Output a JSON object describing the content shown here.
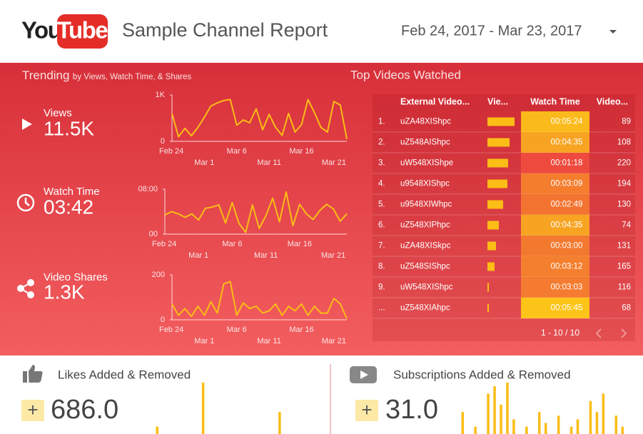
{
  "header": {
    "logo_you": "You",
    "logo_tube": "Tube",
    "title": "Sample Channel Report",
    "date_range": "Feb 24, 2017 - Mar 23, 2017"
  },
  "trending": {
    "title": "Trending",
    "subtitle": "by Views, Watch Time, & Shares",
    "metrics": [
      {
        "label": "Views",
        "value": "11.5K",
        "chart": {
          "type": "line",
          "color": "#fbbd16",
          "categories": [
            "Feb 24",
            null,
            null,
            null,
            null,
            "Mar 1",
            null,
            null,
            null,
            null,
            "Mar 6",
            null,
            null,
            null,
            null,
            "Mar 11",
            null,
            null,
            null,
            null,
            "Mar 16",
            null,
            null,
            null,
            null,
            "Mar 21",
            null,
            null
          ],
          "values": [
            600,
            100,
            280,
            120,
            300,
            520,
            760,
            830,
            880,
            900,
            350,
            460,
            400,
            700,
            250,
            580,
            300,
            130,
            600,
            200,
            360,
            900,
            620,
            300,
            200,
            860,
            780,
            50
          ],
          "ylim": [
            0,
            1000
          ],
          "yticks": [
            0,
            {
              "value": 1000,
              "label": "1K"
            }
          ]
        }
      },
      {
        "label": "Watch Time",
        "value": "03:42",
        "chart": {
          "type": "line",
          "color": "#fbbd16",
          "categories": [
            "Feb 24",
            null,
            null,
            null,
            null,
            "Mar 1",
            null,
            null,
            null,
            null,
            "Mar 6",
            null,
            null,
            null,
            null,
            "Mar 11",
            null,
            null,
            null,
            null,
            "Mar 16",
            null,
            null,
            null,
            null,
            "Mar 21",
            null,
            null
          ],
          "values": [
            3.4,
            4,
            3.6,
            3,
            3.6,
            2.5,
            4.6,
            4.8,
            5.2,
            2,
            5.6,
            1.9,
            0.3,
            5.2,
            1,
            3.3,
            6.4,
            2.2,
            7.5,
            1.5,
            5.3,
            3.6,
            2.6,
            4.2,
            5.3,
            4.5,
            2.3,
            3.6
          ],
          "ylim": [
            0,
            8
          ],
          "yticks": [
            {
              "value": 0,
              "label": "00"
            },
            {
              "value": 8,
              "label": "08:00"
            }
          ]
        }
      },
      {
        "label": "Video Shares",
        "value": "1.3K",
        "chart": {
          "type": "line",
          "color": "#fbbd16",
          "categories": [
            "Feb 24",
            null,
            null,
            null,
            null,
            "Mar 1",
            null,
            null,
            null,
            null,
            "Mar 6",
            null,
            null,
            null,
            null,
            "Mar 11",
            null,
            null,
            null,
            null,
            "Mar 16",
            null,
            null,
            null,
            null,
            "Mar 21",
            null,
            null
          ],
          "values": [
            70,
            20,
            50,
            15,
            60,
            20,
            80,
            30,
            160,
            170,
            20,
            75,
            50,
            60,
            30,
            40,
            70,
            20,
            60,
            40,
            70,
            20,
            60,
            30,
            30,
            95,
            70,
            5
          ],
          "ylim": [
            0,
            200
          ],
          "yticks": [
            0,
            200
          ]
        }
      }
    ]
  },
  "top_videos": {
    "title": "Top Videos Watched",
    "columns": [
      "External Video...",
      "Vie...",
      "Watch Time",
      "Video..."
    ],
    "bar_color": "#fbbd16",
    "rows": [
      {
        "rank": "1.",
        "id": "uZA48XIShpc",
        "views": 380,
        "watch_time": "00:05:24",
        "videos": 89
      },
      {
        "rank": "2.",
        "id": "uZ548AIShpc",
        "views": 310,
        "watch_time": "00:04:35",
        "videos": 108
      },
      {
        "rank": "3.",
        "id": "uW548XIShpe",
        "views": 290,
        "watch_time": "00:01:18",
        "videos": 220
      },
      {
        "rank": "4.",
        "id": "u9548XIShpc",
        "views": 280,
        "watch_time": "00:03:09",
        "videos": 194
      },
      {
        "rank": "5.",
        "id": "u9548XIWhpc",
        "views": 220,
        "watch_time": "00:02:49",
        "videos": 130
      },
      {
        "rank": "6.",
        "id": "uZ548XIPhpc",
        "views": 160,
        "watch_time": "00:04:35",
        "videos": 74
      },
      {
        "rank": "7.",
        "id": "uZA48XISkpc",
        "views": 120,
        "watch_time": "00:03:00",
        "videos": 131
      },
      {
        "rank": "8.",
        "id": "uZ548SIShpc",
        "views": 100,
        "watch_time": "00:03:12",
        "videos": 165
      },
      {
        "rank": "9.",
        "id": "uW548XIShpc",
        "views": 20,
        "watch_time": "00:03:03",
        "videos": 116
      },
      {
        "rank": "...",
        "id": "uZ548XIAhpc",
        "views": 20,
        "watch_time": "00:05:45",
        "videos": 68
      }
    ],
    "pagination": "1 - 10 / 10"
  },
  "bottom": [
    {
      "title": "Likes Added & Removed",
      "sign": "+",
      "value": "686.0",
      "bar_color": "#fbbd16",
      "bars": [
        5,
        0,
        0,
        35,
        0,
        0,
        0,
        0,
        15,
        0,
        0,
        0
      ]
    },
    {
      "title": "Subscriptions Added & Removed",
      "sign": "+",
      "value": "31.0",
      "bar_color": "#fbbd16",
      "bars": [
        30,
        0,
        10,
        0,
        55,
        65,
        40,
        70,
        20,
        0,
        10,
        0,
        30,
        15,
        0,
        25,
        0,
        10,
        20,
        0,
        45,
        30,
        55,
        0,
        25,
        10
      ]
    }
  ]
}
